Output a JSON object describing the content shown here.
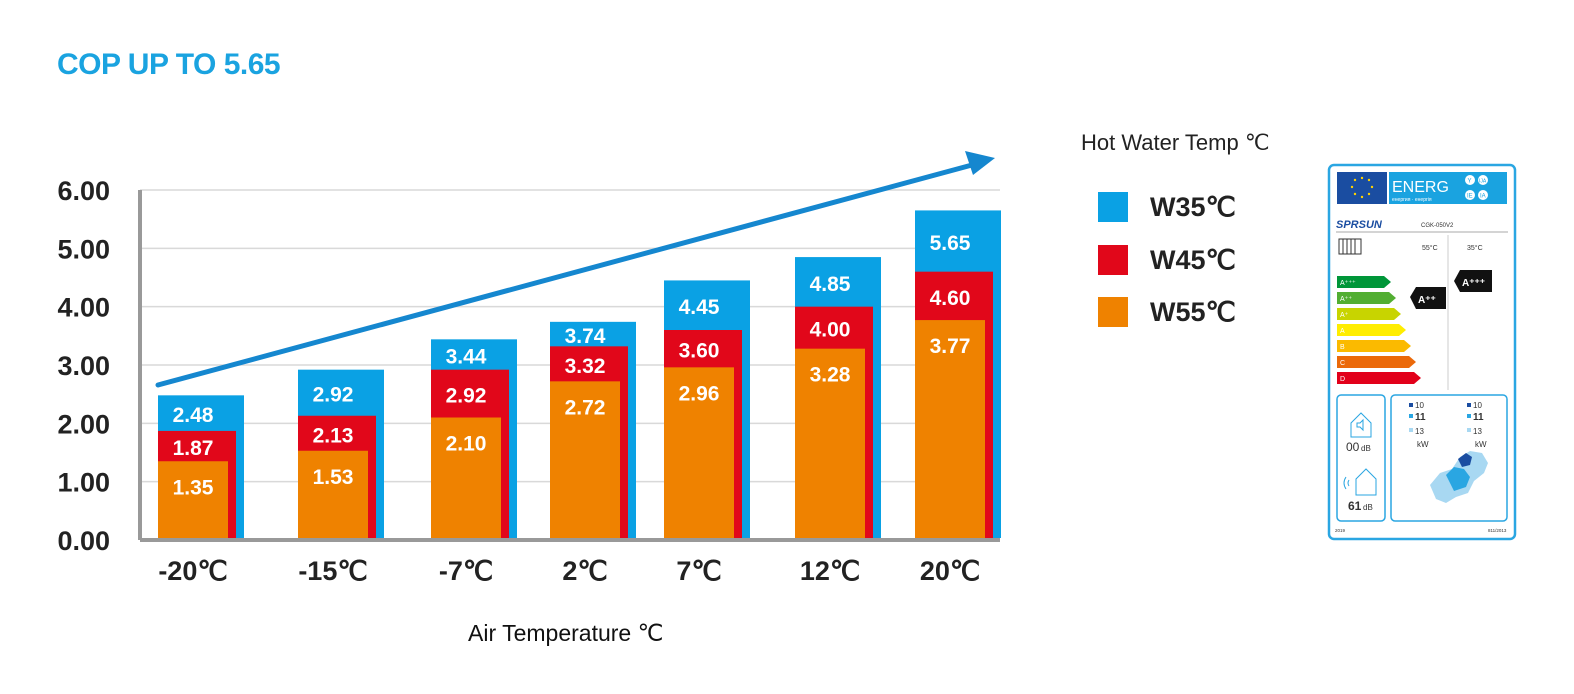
{
  "title": "COP UP TO 5.65",
  "colors": {
    "title": "#1aa3e0",
    "W35": "#0aa1e4",
    "W45": "#e1071a",
    "W55": "#ef8200",
    "arrow": "#1587cf",
    "grid": "#d9d9d9",
    "axis": "#999999"
  },
  "legend": {
    "title": "Hot Water Temp ℃",
    "items": [
      {
        "label": "W35℃",
        "color_key": "W35"
      },
      {
        "label": "W45℃",
        "color_key": "W45"
      },
      {
        "label": "W55℃",
        "color_key": "W55"
      }
    ]
  },
  "chart_data": {
    "type": "bar",
    "title": "COP UP TO 5.65",
    "xlabel": "Air Temperature ℃",
    "ylabel": "",
    "ylim": [
      0,
      6
    ],
    "yticks": [
      "0.00",
      "1.00",
      "2.00",
      "3.00",
      "4.00",
      "5.00",
      "6.00"
    ],
    "grid": true,
    "legend_position": "right",
    "categories": [
      "-20℃",
      "-15℃",
      "-7℃",
      "2℃",
      "7℃",
      "12℃",
      "20℃"
    ],
    "series": [
      {
        "name": "W35℃",
        "values": [
          2.48,
          2.92,
          3.44,
          3.74,
          4.45,
          4.85,
          5.65
        ]
      },
      {
        "name": "W45℃",
        "values": [
          1.87,
          2.13,
          2.92,
          3.32,
          3.6,
          4.0,
          4.6
        ]
      },
      {
        "name": "W55℃",
        "values": [
          1.35,
          1.53,
          2.1,
          2.72,
          2.96,
          3.28,
          3.77
        ]
      }
    ],
    "annotations": [
      "trend arrow rising left to right"
    ]
  },
  "energy_label": {
    "header": "ENERG",
    "header_sub": "енергия · енергія",
    "badges": [
      "Y",
      "IJA",
      "IE",
      "IA"
    ],
    "brand": "SPRSUN",
    "model": "CGK-050V2",
    "col_left": "55°C",
    "col_right": "35°C",
    "classes": [
      "A⁺⁺⁺",
      "A⁺⁺",
      "A⁺",
      "A",
      "B",
      "C",
      "D"
    ],
    "rating_left": "A⁺⁺",
    "rating_right": "A⁺⁺⁺",
    "noise_indoor": "00",
    "noise_outdoor": "61",
    "noise_unit": "dB",
    "power_left": [
      "10",
      "11",
      "13"
    ],
    "power_right": [
      "10",
      "11",
      "13"
    ],
    "power_unit": "kW",
    "footer_left": "2019",
    "footer_right": "811/2013"
  }
}
